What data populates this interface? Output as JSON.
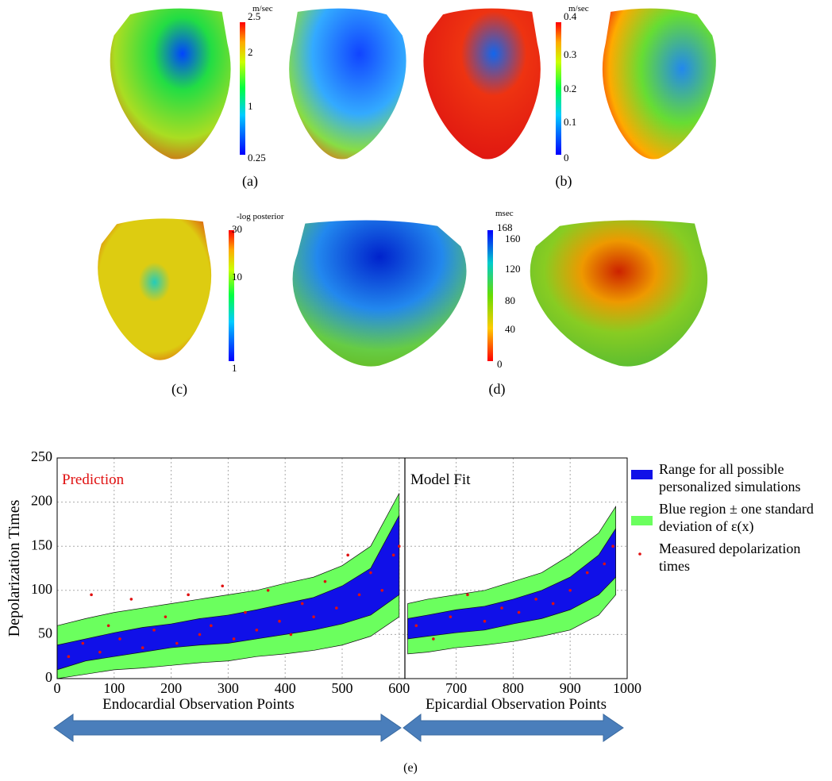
{
  "panels": {
    "a": {
      "caption": "(a)",
      "unit": "m/sec",
      "ticks": [
        "2.5",
        "2",
        "1",
        "0.25"
      ]
    },
    "b": {
      "caption": "(b)",
      "unit": "m/sec",
      "ticks": [
        "0.4",
        "0.3",
        "0.2",
        "0.1",
        "0"
      ]
    },
    "c": {
      "caption": "(c)",
      "unit": "-log posterior",
      "ticks": [
        "30",
        "10",
        "1"
      ]
    },
    "d": {
      "caption": "(d)",
      "unit": "msec",
      "ticks": [
        "168",
        "160",
        "120",
        "80",
        "40",
        "0"
      ]
    }
  },
  "chart_data": {
    "type": "band",
    "caption": "(e)",
    "ylabel": "Depolarization Times",
    "annotations": [
      "Prediction",
      "Model Fit"
    ],
    "xlabels": [
      "Endocardial Observation Points",
      "Epicardial Observation Points"
    ],
    "x": [
      0,
      50,
      100,
      150,
      200,
      250,
      300,
      350,
      400,
      450,
      500,
      550,
      600,
      605,
      615,
      650,
      700,
      750,
      800,
      850,
      900,
      950,
      980
    ],
    "series": [
      {
        "name": "Blue region ± one standard deviation of ε(x)",
        "color": "#6bff5e",
        "lower": [
          0,
          5,
          10,
          12,
          15,
          18,
          20,
          25,
          28,
          32,
          38,
          48,
          70,
          null,
          28,
          30,
          35,
          38,
          42,
          48,
          55,
          72,
          95
        ],
        "upper": [
          60,
          68,
          75,
          80,
          85,
          90,
          95,
          100,
          108,
          115,
          128,
          150,
          210,
          null,
          85,
          90,
          95,
          100,
          110,
          120,
          140,
          165,
          195
        ]
      },
      {
        "name": "Range for all possible personalized simulations",
        "color": "#1010e8",
        "lower": [
          10,
          20,
          25,
          30,
          35,
          38,
          40,
          45,
          50,
          55,
          62,
          72,
          95,
          null,
          45,
          48,
          52,
          55,
          62,
          68,
          78,
          95,
          115
        ],
        "upper": [
          38,
          45,
          52,
          58,
          62,
          68,
          72,
          78,
          85,
          92,
          105,
          125,
          185,
          null,
          68,
          72,
          78,
          82,
          90,
          100,
          115,
          140,
          170
        ]
      }
    ],
    "points": {
      "name": "Measured depolarization times",
      "color": "#e01010",
      "x": [
        20,
        45,
        60,
        75,
        90,
        110,
        130,
        150,
        170,
        190,
        210,
        230,
        250,
        270,
        290,
        310,
        330,
        350,
        370,
        390,
        410,
        430,
        450,
        470,
        490,
        510,
        530,
        550,
        570,
        590,
        600,
        630,
        660,
        690,
        720,
        750,
        780,
        810,
        840,
        870,
        900,
        930,
        960,
        975
      ],
      "values": [
        25,
        40,
        95,
        30,
        60,
        45,
        90,
        35,
        55,
        70,
        40,
        95,
        50,
        60,
        105,
        45,
        75,
        55,
        100,
        65,
        50,
        85,
        70,
        110,
        80,
        140,
        95,
        120,
        100,
        140,
        150,
        60,
        45,
        70,
        95,
        65,
        80,
        75,
        90,
        85,
        100,
        120,
        130,
        150
      ]
    },
    "xlim": [
      0,
      1000
    ],
    "ylim": [
      0,
      250
    ],
    "xticks": [
      0,
      100,
      200,
      300,
      400,
      500,
      600,
      700,
      800,
      900,
      1000
    ],
    "yticks": [
      0,
      50,
      100,
      150,
      200,
      250
    ],
    "grid": true
  }
}
